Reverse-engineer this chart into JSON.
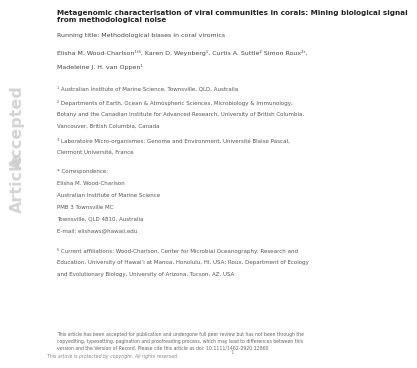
{
  "title_bold": "Metagenomic characterisation of viral communities in corals: Mining biological signal\nfrom methodological noise",
  "running_title": "Running title: Methodological biases in coral viromics",
  "authors": "Elisha M. Wood-Charlson¹ʳ⁵, Karen D. Weynberg¹, Curtis A. Suttle² Simon Roux²ʳ,",
  "authors2": "Madeleine J. H. van Oppen¹",
  "aff1": "¹ Australian Institute of Marine Science, Townsville, QLD, Australia",
  "aff2": "² Departments of Earth, Ocean & Atmospheric Sciences, Microbiology & Immunology,",
  "aff2b": "Botany and the Canadian Institute for Advanced Research, University of British Columbia,",
  "aff2c": "Vancouver, British Columbia, Canada",
  "aff3": "³ Laboratoire Micro-organismes: Genome and Environment, Université Blaise Pascal,",
  "aff3b": "Clermont Université, France",
  "corr_label": "* Correspondence:",
  "corr1": "Elisha M. Wood-Charlson",
  "corr2": "Australian Institute of Marine Science",
  "corr3": "PMB 3 Townsville MC",
  "corr4": "Townsville, QLD 4810, Australia",
  "corr5": "E-mail: elishaws@hawaii.edu",
  "curr_label": "⁵ Current affiliations: Wood-Charlson, Center for Microbial Oceanography: Research and",
  "curr2": "Education, University of Hawaiʻi at Manoa, Honolulu, HI, USA; Roux, Department of Ecology",
  "curr3": "and Evolutionary Biology, University of Arizona, Tucson, AZ, USA",
  "footer1": "This article has been accepted for publication and undergone full peer review but has not been through the",
  "footer2": "copyediting, typesetting, pagination and proofreading process, which may lead to differences between this",
  "footer3": "version and the Version of Record. Please cite this article as doi: 10.1111/1462-2920.12860",
  "page_num": "1",
  "copyright": "This article is protected by copyright. All rights reserved.",
  "watermark_line1": "Accepted",
  "watermark_line2": "Article",
  "bg_color": "#ffffff",
  "text_color": "#333333",
  "light_text": "#888888",
  "watermark_color": "#cccccc"
}
